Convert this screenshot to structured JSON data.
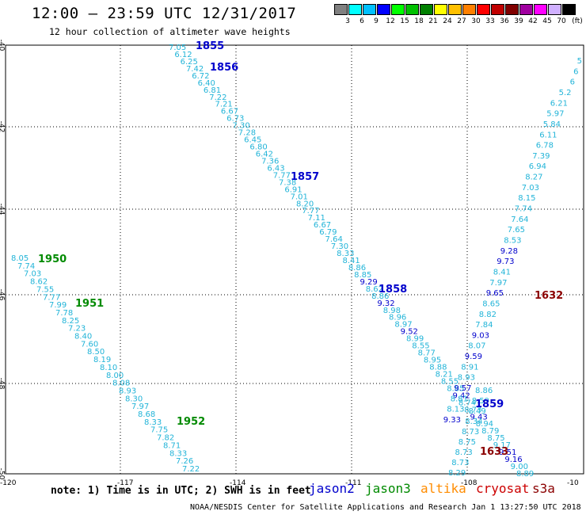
{
  "header": {
    "title": "12:00 – 23:59 UTC 12/31/2017",
    "subtitle": "12 hour collection of altimeter wave heights"
  },
  "legend": {
    "unit": "(ft)",
    "colors": [
      "#808080",
      "#00ffff",
      "#00c0ff",
      "#0000ff",
      "#00ff00",
      "#00c000",
      "#008000",
      "#ffff00",
      "#ffc000",
      "#ff8000",
      "#ff0000",
      "#c00000",
      "#800000",
      "#a000a0",
      "#ff00ff",
      "#d0b0ff",
      "#000000"
    ],
    "labels": [
      "3",
      "6",
      "9",
      "12",
      "15",
      "18",
      "21",
      "24",
      "27",
      "30",
      "33",
      "36",
      "39",
      "42",
      "45",
      "70"
    ]
  },
  "chart_data": {
    "type": "scatter",
    "x_ticks": [
      "-120",
      "-117",
      "-114",
      "-111",
      "-108",
      "-10"
    ],
    "y_ticks": [
      "-40",
      "-42",
      "-44",
      "-46",
      "-48",
      "-50"
    ],
    "track_labels": [
      {
        "text": "1855",
        "sat": "jason2"
      },
      {
        "text": "1856",
        "sat": "jason2"
      },
      {
        "text": "1857",
        "sat": "jason2"
      },
      {
        "text": "1858",
        "sat": "jason2"
      },
      {
        "text": "1859",
        "sat": "jason2"
      },
      {
        "text": "1950",
        "sat": "jason3"
      },
      {
        "text": "1951",
        "sat": "jason3"
      },
      {
        "text": "1952",
        "sat": "jason3"
      },
      {
        "text": "1632",
        "sat": "cryosat"
      },
      {
        "text": "1633",
        "sat": "cryosat"
      }
    ],
    "tracks": [
      {
        "name": "1855-1857",
        "values": [
          "7.05",
          "6.12",
          "6.25",
          "7.42",
          "6.72",
          "6.40",
          "6.81",
          "7.22",
          "7.21",
          "6.67",
          "6.73",
          "7.30",
          "7.28",
          "6.45",
          "6.80",
          "6.42",
          "7.36",
          "6.43",
          "7.77",
          "7.38",
          "6.91",
          "7.01",
          "8.20",
          "7.77",
          "7.11",
          "6.67",
          "6.79",
          "7.64",
          "7.30",
          "8.33",
          "8.41",
          "8.86",
          "8.85",
          "9.29",
          "8.62",
          "8.86",
          "9.32",
          "8.98",
          "8.96",
          "8.97",
          "9.52",
          "8.99",
          "8.55",
          "8.77",
          "8.95",
          "8.88",
          "8.21",
          "8.55",
          "8.85",
          "9.42",
          "8.74",
          "8.73",
          "9.43",
          "8.94",
          "8.79",
          "8.75",
          "9.17",
          "9.51",
          "9.16",
          "9.00",
          "8.89"
        ]
      },
      {
        "name": "1859",
        "values": [
          "8.86",
          "8.59",
          "8.49",
          "8.34",
          "8.73",
          "8.75",
          "8.73",
          "8.73",
          "8.29"
        ]
      },
      {
        "name": "1632",
        "values": [
          "5",
          "6",
          "6",
          "5.2",
          "6.21",
          "5.97",
          "5.84",
          "6.11",
          "6.78",
          "7.39",
          "6.94",
          "8.27",
          "7.03",
          "8.15",
          "7.74",
          "7.64",
          "7.65",
          "8.53",
          "9.28",
          "9.73",
          "8.41",
          "7.97",
          "9.65",
          "8.65",
          "8.82",
          "7.84",
          "9.03",
          "8.07",
          "9.59",
          "8.91",
          "8.93",
          "9.57",
          "8.81",
          "8.13",
          "9.33"
        ]
      },
      {
        "name": "1950-1952",
        "values": [
          "8.05",
          "7.74",
          "7.03",
          "8.62",
          "7.55",
          "7.77",
          "7.99",
          "7.78",
          "8.25",
          "7.23",
          "8.40",
          "7.60",
          "8.50",
          "8.19",
          "8.10",
          "8.00",
          "8.08",
          "8.93",
          "8.30",
          "7.97",
          "8.68",
          "8.33",
          "7.75",
          "7.82",
          "8.71",
          "8.33",
          "7.26",
          "7.22"
        ]
      }
    ],
    "value_colors": {
      "cyan": "#22b4d8",
      "blue": "#0000cc",
      "green": "#008a00",
      "maroon": "#8b0000"
    },
    "high_values": [
      "9.29",
      "9.32",
      "9.52",
      "9.42",
      "9.43",
      "9.51",
      "9.16",
      "9.28",
      "9.73",
      "9.65",
      "9.03",
      "9.59",
      "9.57",
      "9.33"
    ]
  },
  "footer": {
    "note": "note:  1) Time is in UTC; 2) SWH is in feet",
    "satellites": [
      {
        "name": "jason2",
        "color": "#0000cc"
      },
      {
        "name": "jason3",
        "color": "#008a00"
      },
      {
        "name": "altika",
        "color": "#ff8c00"
      },
      {
        "name": "cryosat",
        "color": "#cc0000"
      },
      {
        "name": "s3a",
        "color": "#8b0000"
      }
    ],
    "credit": "NOAA/NESDIS Center for Satellite Applications and Research   Jan  1 13:27:50 UTC 2018"
  }
}
